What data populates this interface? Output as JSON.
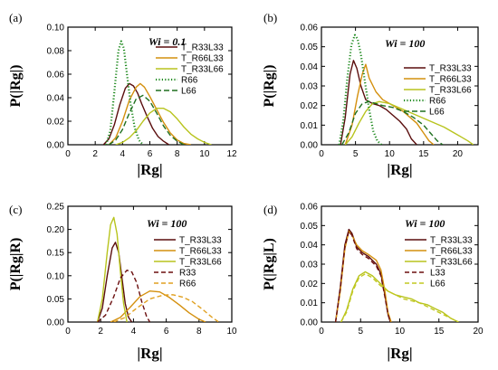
{
  "styles": {
    "T_R33L33": {
      "color": "#5a0d0d",
      "dash": ""
    },
    "T_R66L33": {
      "color": "#d4900e",
      "dash": ""
    },
    "T_R33L66": {
      "color": "#b8c41e",
      "dash": ""
    },
    "R66": {
      "color": "#1f8a1f",
      "dash": "1.2,2.2",
      "width": 2.2
    },
    "L66": {
      "color": "#1f6f1f",
      "dash": "6,3"
    },
    "R33": {
      "color": "#6b0f0f",
      "dash": "5,3"
    },
    "R66b": {
      "color": "#e0a020",
      "dash": "5,3"
    },
    "L33": {
      "color": "#6b0f0f",
      "dash": "5,3"
    },
    "L66b": {
      "color": "#c2c820",
      "dash": "5,3"
    }
  },
  "chart_data": [
    {
      "panel": "(a)",
      "type": "line",
      "annotation": "Wi = 0.1",
      "ylabel": "P(|Rg|)",
      "xlabel": "|Rg|",
      "xlim": [
        0,
        12
      ],
      "ylim": [
        0,
        0.1
      ],
      "xticks": [
        0,
        2,
        4,
        6,
        8,
        10,
        12
      ],
      "yticks": [
        0,
        0.02,
        0.04,
        0.06,
        0.08,
        0.1
      ],
      "ytick_labels": [
        "0.00",
        "0.02",
        "0.04",
        "0.06",
        "0.08",
        "0.10"
      ],
      "series": [
        {
          "name": "T_R33L33",
          "style": "T_R33L33",
          "x": [
            2.6,
            3.0,
            3.4,
            3.8,
            4.2,
            4.5,
            4.8,
            5.1,
            5.4,
            5.8,
            6.2,
            6.6,
            7.0,
            7.4
          ],
          "y": [
            0.0,
            0.005,
            0.017,
            0.034,
            0.048,
            0.052,
            0.05,
            0.044,
            0.035,
            0.024,
            0.014,
            0.007,
            0.003,
            0.0
          ]
        },
        {
          "name": "T_R66L33",
          "style": "T_R66L33",
          "x": [
            3.0,
            3.5,
            4.0,
            4.5,
            5.0,
            5.3,
            5.6,
            6.0,
            6.5,
            7.0,
            7.5,
            8.0,
            8.5,
            9.0
          ],
          "y": [
            0.0,
            0.006,
            0.02,
            0.038,
            0.049,
            0.052,
            0.049,
            0.041,
            0.03,
            0.019,
            0.01,
            0.004,
            0.001,
            0.0
          ]
        },
        {
          "name": "T_R33L66",
          "style": "T_R33L66",
          "x": [
            3.5,
            4.0,
            4.5,
            5.0,
            5.5,
            6.0,
            6.5,
            7.0,
            7.5,
            8.0,
            8.5,
            9.0,
            9.5,
            10.0,
            10.5
          ],
          "y": [
            0.0,
            0.002,
            0.006,
            0.012,
            0.02,
            0.027,
            0.031,
            0.031,
            0.028,
            0.022,
            0.015,
            0.009,
            0.005,
            0.002,
            0.0
          ]
        },
        {
          "name": "R66",
          "style": "R66",
          "x": [
            2.8,
            3.1,
            3.4,
            3.7,
            3.9,
            4.1,
            4.3,
            4.6,
            4.9,
            5.2,
            5.5
          ],
          "y": [
            0.0,
            0.012,
            0.045,
            0.08,
            0.088,
            0.082,
            0.062,
            0.034,
            0.014,
            0.004,
            0.0
          ]
        },
        {
          "name": "L66",
          "style": "L66",
          "x": [
            3.0,
            3.5,
            4.0,
            4.5,
            5.0,
            5.5,
            6.0,
            6.5,
            7.0,
            7.5,
            8.0,
            8.5
          ],
          "y": [
            0.0,
            0.004,
            0.013,
            0.027,
            0.039,
            0.042,
            0.037,
            0.027,
            0.016,
            0.008,
            0.003,
            0.0
          ]
        }
      ],
      "legend": [
        "T_R33L33",
        "T_R66L33",
        "T_R33L66",
        "R66",
        "L66"
      ]
    },
    {
      "panel": "(b)",
      "type": "line",
      "annotation": "Wi = 100",
      "ylabel": "P(|Rg|)",
      "xlabel": "|Rg|",
      "xlim": [
        0,
        23
      ],
      "ylim": [
        0,
        0.06
      ],
      "xticks": [
        0,
        5,
        10,
        15,
        20
      ],
      "yticks": [
        0,
        0.01,
        0.02,
        0.03,
        0.04,
        0.05,
        0.06
      ],
      "ytick_labels": [
        "0.00",
        "0.01",
        "0.02",
        "0.03",
        "0.04",
        "0.05",
        "0.06"
      ],
      "series": [
        {
          "name": "T_R33L33",
          "style": "T_R33L33",
          "x": [
            2.8,
            3.5,
            4.2,
            4.7,
            5.2,
            5.8,
            6.5,
            7.5,
            8.5,
            9.5,
            10.5,
            11.5,
            12.5,
            13.2,
            14.0
          ],
          "y": [
            0.0,
            0.014,
            0.036,
            0.043,
            0.039,
            0.03,
            0.023,
            0.021,
            0.02,
            0.018,
            0.015,
            0.012,
            0.008,
            0.003,
            0.0
          ]
        },
        {
          "name": "T_R66L33",
          "style": "T_R66L33",
          "x": [
            3.5,
            4.5,
            5.3,
            6.0,
            6.5,
            7.0,
            8.0,
            9.0,
            10.0,
            11.0,
            12.0,
            13.0,
            14.0,
            15.0,
            15.8,
            16.5
          ],
          "y": [
            0.0,
            0.01,
            0.025,
            0.036,
            0.041,
            0.034,
            0.027,
            0.023,
            0.021,
            0.019,
            0.017,
            0.014,
            0.011,
            0.006,
            0.002,
            0.0
          ]
        },
        {
          "name": "T_R33L66",
          "style": "T_R33L66",
          "x": [
            3.5,
            4.5,
            5.5,
            6.5,
            7.5,
            8.5,
            10.0,
            12.0,
            14.0,
            16.0,
            18.0,
            19.5,
            20.5,
            21.5,
            22.3
          ],
          "y": [
            0.0,
            0.004,
            0.011,
            0.017,
            0.021,
            0.022,
            0.021,
            0.018,
            0.015,
            0.012,
            0.009,
            0.006,
            0.004,
            0.002,
            0.0
          ]
        },
        {
          "name": "R66",
          "style": "R66",
          "x": [
            2.6,
            3.2,
            3.8,
            4.4,
            4.9,
            5.3,
            5.8,
            6.4,
            7.0,
            7.6,
            8.2,
            8.8
          ],
          "y": [
            0.0,
            0.012,
            0.034,
            0.051,
            0.056,
            0.054,
            0.046,
            0.032,
            0.018,
            0.007,
            0.002,
            0.0
          ]
        },
        {
          "name": "L66",
          "style": "L66",
          "x": [
            3.0,
            4.0,
            5.0,
            6.0,
            7.0,
            8.0,
            9.0,
            10.5,
            12.0,
            13.5,
            15.0,
            16.0,
            17.0,
            17.8
          ],
          "y": [
            0.0,
            0.006,
            0.016,
            0.021,
            0.022,
            0.021,
            0.02,
            0.019,
            0.017,
            0.014,
            0.01,
            0.006,
            0.002,
            0.0
          ]
        }
      ],
      "legend": [
        "T_R33L33",
        "T_R66L33",
        "T_R33L66",
        "R66",
        "L66"
      ]
    },
    {
      "panel": "(c)",
      "type": "line",
      "annotation": "Wi = 100",
      "ylabel": "P(|Rg|R)",
      "xlabel": "|Rg|",
      "xlim": [
        0,
        10
      ],
      "ylim": [
        0,
        0.25
      ],
      "xticks": [
        0,
        2,
        4,
        6,
        8,
        10
      ],
      "yticks": [
        0,
        0.05,
        0.1,
        0.15,
        0.2,
        0.25
      ],
      "ytick_labels": [
        "0.00",
        "0.05",
        "0.10",
        "0.15",
        "0.20",
        "0.25"
      ],
      "series": [
        {
          "name": "T_R33L33",
          "style": "T_R33L33",
          "x": [
            1.8,
            2.1,
            2.4,
            2.7,
            2.9,
            3.1,
            3.3,
            3.5,
            3.7,
            3.9
          ],
          "y": [
            0.0,
            0.03,
            0.1,
            0.16,
            0.172,
            0.15,
            0.095,
            0.04,
            0.01,
            0.0
          ]
        },
        {
          "name": "T_R66L33",
          "style": "T_R66L33",
          "x": [
            2.6,
            3.2,
            3.8,
            4.4,
            5.0,
            5.6,
            6.2,
            6.8,
            7.4,
            8.0,
            8.4
          ],
          "y": [
            0.0,
            0.01,
            0.032,
            0.055,
            0.067,
            0.065,
            0.053,
            0.037,
            0.02,
            0.006,
            0.0
          ]
        },
        {
          "name": "T_R33L66",
          "style": "T_R33L66",
          "x": [
            1.8,
            2.1,
            2.4,
            2.6,
            2.8,
            3.0,
            3.2,
            3.4,
            3.6
          ],
          "y": [
            0.0,
            0.05,
            0.15,
            0.21,
            0.226,
            0.19,
            0.11,
            0.04,
            0.0
          ]
        },
        {
          "name": "R33",
          "style": "R33",
          "x": [
            1.8,
            2.3,
            2.8,
            3.2,
            3.6,
            3.9,
            4.2,
            4.5,
            4.8,
            5.0
          ],
          "y": [
            0.0,
            0.015,
            0.055,
            0.095,
            0.112,
            0.108,
            0.085,
            0.045,
            0.012,
            0.0
          ]
        },
        {
          "name": "R66",
          "style": "R66b",
          "x": [
            2.8,
            3.5,
            4.2,
            5.0,
            5.8,
            6.4,
            7.0,
            7.6,
            8.2,
            8.8,
            9.2
          ],
          "y": [
            0.0,
            0.01,
            0.03,
            0.05,
            0.058,
            0.059,
            0.054,
            0.044,
            0.028,
            0.01,
            0.0
          ]
        }
      ],
      "legend": [
        "T_R33L33",
        "T_R66L33",
        "T_R33L66",
        "R33",
        "R66"
      ]
    },
    {
      "panel": "(d)",
      "type": "line",
      "annotation": "Wi = 100",
      "ylabel": "P(|Rg|L)",
      "xlabel": "|Rg|",
      "xlim": [
        0,
        20
      ],
      "ylim": [
        0,
        0.06
      ],
      "xticks": [
        0,
        5,
        10,
        15,
        20
      ],
      "yticks": [
        0,
        0.01,
        0.02,
        0.03,
        0.04,
        0.05,
        0.06
      ],
      "ytick_labels": [
        "0.00",
        "0.01",
        "0.02",
        "0.03",
        "0.04",
        "0.05",
        "0.06"
      ],
      "series": [
        {
          "name": "T_R33L33",
          "style": "T_R33L33",
          "x": [
            1.8,
            2.4,
            3.0,
            3.5,
            3.9,
            4.5,
            5.2,
            6.0,
            7.0,
            7.6,
            8.1,
            8.5,
            8.8
          ],
          "y": [
            0.0,
            0.018,
            0.04,
            0.048,
            0.046,
            0.039,
            0.036,
            0.034,
            0.03,
            0.025,
            0.014,
            0.004,
            0.0
          ]
        },
        {
          "name": "T_R66L33",
          "style": "T_R66L33",
          "x": [
            1.8,
            2.4,
            3.0,
            3.5,
            3.9,
            4.5,
            5.2,
            6.0,
            7.0,
            7.6,
            8.1,
            8.5,
            8.9
          ],
          "y": [
            0.0,
            0.016,
            0.038,
            0.047,
            0.045,
            0.04,
            0.037,
            0.035,
            0.032,
            0.027,
            0.016,
            0.005,
            0.0
          ]
        },
        {
          "name": "T_R33L66",
          "style": "T_R33L66",
          "x": [
            2.5,
            3.2,
            4.0,
            4.8,
            5.6,
            6.5,
            7.5,
            8.5,
            9.5,
            10.5,
            11.5,
            12.5,
            13.5,
            14.5,
            15.5,
            16.5,
            17.5
          ],
          "y": [
            0.0,
            0.006,
            0.017,
            0.024,
            0.026,
            0.024,
            0.02,
            0.016,
            0.014,
            0.013,
            0.012,
            0.01,
            0.009,
            0.007,
            0.005,
            0.002,
            0.0
          ]
        },
        {
          "name": "L33",
          "style": "L33",
          "x": [
            1.8,
            2.4,
            3.0,
            3.5,
            3.9,
            4.5,
            5.2,
            6.0,
            7.0,
            7.6,
            8.1,
            8.5,
            8.8
          ],
          "y": [
            0.0,
            0.017,
            0.039,
            0.047,
            0.045,
            0.038,
            0.035,
            0.033,
            0.029,
            0.024,
            0.013,
            0.004,
            0.0
          ]
        },
        {
          "name": "L66",
          "style": "L66b",
          "x": [
            2.5,
            3.2,
            4.0,
            4.8,
            5.6,
            6.5,
            7.5,
            8.5,
            9.5,
            10.5,
            11.5,
            12.5,
            13.5,
            14.5,
            15.5,
            16.5,
            17.5
          ],
          "y": [
            0.0,
            0.005,
            0.016,
            0.023,
            0.025,
            0.023,
            0.019,
            0.016,
            0.014,
            0.012,
            0.011,
            0.01,
            0.008,
            0.006,
            0.004,
            0.002,
            0.0
          ]
        }
      ],
      "legend": [
        "T_R33L33",
        "T_R66L33",
        "T_R33L66",
        "L33",
        "L66"
      ]
    }
  ]
}
